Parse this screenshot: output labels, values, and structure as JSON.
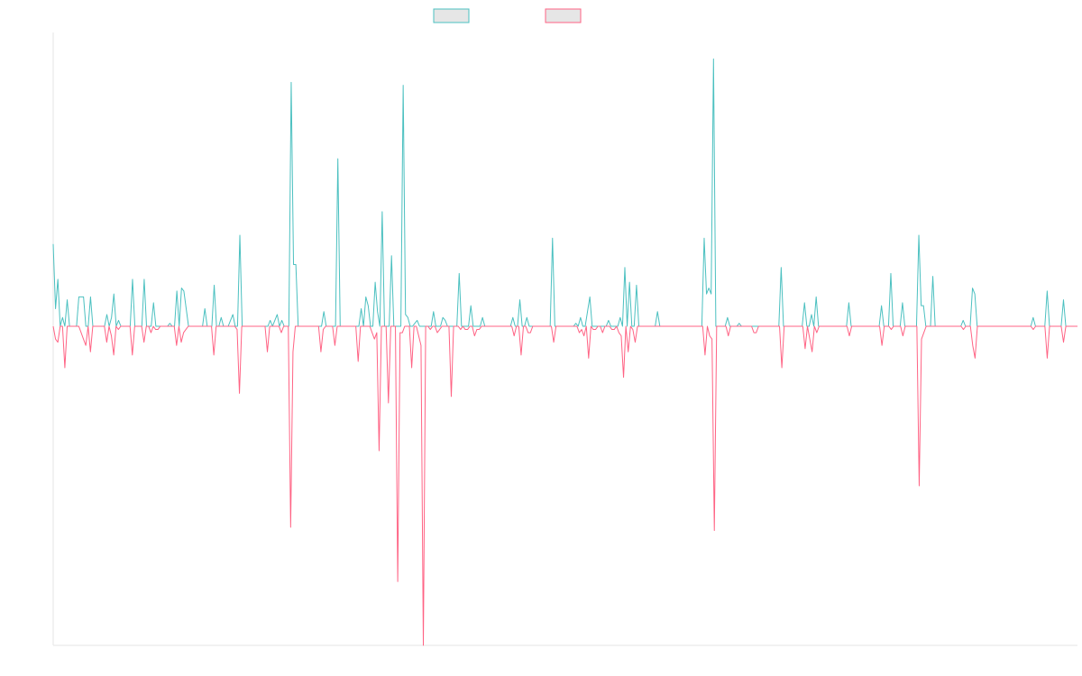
{
  "chart_data": {
    "type": "line",
    "title": "",
    "xlabel": "",
    "ylabel": "",
    "ylim": [
      -1.0,
      1.0
    ],
    "grid": false,
    "legend": "top-center",
    "zero_line": true,
    "series": [
      {
        "color": "#4bc0c0",
        "values": [
          0.28,
          0.06,
          0.16,
          0.0,
          0.03,
          0.0,
          0.09,
          0.0,
          0.0,
          0.0,
          0.0,
          0.1,
          0.1,
          0.1,
          0.0,
          0.0,
          0.1,
          0.0,
          0.0,
          0.0,
          0.0,
          0.0,
          0.0,
          0.04,
          0.0,
          0.03,
          0.11,
          0.0,
          0.02,
          0.0,
          0.0,
          0.0,
          0.0,
          0.0,
          0.16,
          0.0,
          0.0,
          0.0,
          0.0,
          0.16,
          0.0,
          0.0,
          0.0,
          0.08,
          0.0,
          0.0,
          0.0,
          0.0,
          0.0,
          0.0,
          0.01,
          0.0,
          0.0,
          0.12,
          0.0,
          0.13,
          0.12,
          0.06,
          0.0,
          0.0,
          0.0,
          0.0,
          0.0,
          0.0,
          0.0,
          0.06,
          0.0,
          0.0,
          0.0,
          0.14,
          0.0,
          0.0,
          0.03,
          0.0,
          0.0,
          0.0,
          0.02,
          0.04,
          0.0,
          0.0,
          0.31,
          0.0,
          0.0,
          0.0,
          0.0,
          0.0,
          0.0,
          0.0,
          0.0,
          0.0,
          0.0,
          0.0,
          0.0,
          0.02,
          0.0,
          0.02,
          0.04,
          0.0,
          0.02,
          0.0,
          0.0,
          0.0,
          0.83,
          0.21,
          0.21,
          0.0,
          0.0,
          0.0,
          0.0,
          0.0,
          0.0,
          0.0,
          0.0,
          0.0,
          0.0,
          0.0,
          0.05,
          0.0,
          0.0,
          0.0,
          0.0,
          0.0,
          0.57,
          0.0,
          0.0,
          0.0,
          0.0,
          0.0,
          0.0,
          0.0,
          0.0,
          0.0,
          0.06,
          0.0,
          0.1,
          0.07,
          0.0,
          0.0,
          0.15,
          0.05,
          0.0,
          0.39,
          0.0,
          0.0,
          0.0,
          0.24,
          0.0,
          0.0,
          0.0,
          0.0,
          0.82,
          0.04,
          0.03,
          0.0,
          0.0,
          0.01,
          0.02,
          0.0,
          0.0,
          0.0,
          0.0,
          0.0,
          0.0,
          0.05,
          0.0,
          0.0,
          0.0,
          0.03,
          0.02,
          0.0,
          0.0,
          0.0,
          0.0,
          0.0,
          0.18,
          0.0,
          0.0,
          0.0,
          0.0,
          0.07,
          0.0,
          0.0,
          0.0,
          0.0,
          0.03,
          0.0,
          0.0,
          0.0,
          0.0,
          0.0,
          0.0,
          0.0,
          0.0,
          0.0,
          0.0,
          0.0,
          0.0,
          0.03,
          0.0,
          0.0,
          0.09,
          0.0,
          0.0,
          0.03,
          0.0,
          0.0,
          0.0,
          0.0,
          0.0,
          0.0,
          0.0,
          0.0,
          0.0,
          0.0,
          0.3,
          0.0,
          0.0,
          0.0,
          0.0,
          0.0,
          0.0,
          0.0,
          0.0,
          0.0,
          0.01,
          0.0,
          0.03,
          0.0,
          0.0,
          0.05,
          0.1,
          0.0,
          0.0,
          0.0,
          0.0,
          0.0,
          0.0,
          0.0,
          0.02,
          0.0,
          0.0,
          0.0,
          0.0,
          0.03,
          0.0,
          0.2,
          0.0,
          0.15,
          0.0,
          0.0,
          0.14,
          0.0,
          0.0,
          0.0,
          0.0,
          0.0,
          0.0,
          0.0,
          0.0,
          0.05,
          0.0,
          0.0,
          0.0,
          0.0,
          0.0,
          0.0,
          0.0,
          0.0,
          0.0,
          0.0,
          0.0,
          0.0,
          0.0,
          0.0,
          0.0,
          0.0,
          0.0,
          0.0,
          0.0,
          0.3,
          0.11,
          0.13,
          0.11,
          0.91,
          0.0,
          0.0,
          0.0,
          0.0,
          0.0,
          0.03,
          0.0,
          0.0,
          0.0,
          0.0,
          0.01,
          0.0,
          0.0,
          0.0,
          0.0,
          0.0,
          0.0,
          0.0,
          0.0,
          0.0,
          0.0,
          0.0,
          0.0,
          0.0,
          0.0,
          0.0,
          0.0,
          0.0,
          0.2,
          0.0,
          0.0,
          0.0,
          0.0,
          0.0,
          0.0,
          0.0,
          0.0,
          0.0,
          0.08,
          0.0,
          0.0,
          0.04,
          0.0,
          0.1,
          0.0,
          0.0,
          0.0,
          0.0,
          0.0,
          0.0,
          0.0,
          0.0,
          0.0,
          0.0,
          0.0,
          0.0,
          0.0,
          0.08,
          0.0,
          0.0,
          0.0,
          0.0,
          0.0,
          0.0,
          0.0,
          0.0,
          0.0,
          0.0,
          0.0,
          0.0,
          0.0,
          0.07,
          0.0,
          0.0,
          0.0,
          0.18,
          0.0,
          0.0,
          0.0,
          0.0,
          0.08,
          0.0,
          0.0,
          0.0,
          0.0,
          0.0,
          0.0,
          0.31,
          0.07,
          0.07,
          0.0,
          0.0,
          0.0,
          0.17,
          0.0,
          0.0,
          0.0,
          0.0,
          0.0,
          0.0,
          0.0,
          0.0,
          0.0,
          0.0,
          0.0,
          0.0,
          0.02,
          0.0,
          0.0,
          0.0,
          0.13,
          0.11,
          0.0,
          0.0,
          0.0,
          0.0,
          0.0,
          0.0,
          0.0,
          0.0,
          0.0,
          0.0,
          0.0,
          0.0,
          0.0,
          0.0,
          0.0,
          0.0,
          0.0,
          0.0,
          0.0,
          0.0,
          0.0,
          0.0,
          0.0,
          0.0,
          0.03,
          0.0,
          0.0,
          0.0,
          0.0,
          0.0,
          0.12,
          0.0,
          0.0,
          0.0,
          0.0,
          0.0,
          0.0,
          0.09,
          0.0,
          0.0,
          0.0,
          0.0,
          0.0,
          0.0
        ]
      },
      {
        "color": "#ff6384",
        "values": [
          0.0,
          -0.04,
          -0.05,
          0.0,
          0.0,
          -0.13,
          0.0,
          0.0,
          0.0,
          0.0,
          0.0,
          0.0,
          -0.02,
          -0.04,
          -0.06,
          0.0,
          -0.08,
          0.0,
          0.0,
          0.0,
          0.0,
          0.0,
          0.0,
          -0.05,
          0.0,
          -0.03,
          -0.09,
          0.0,
          -0.01,
          0.0,
          0.0,
          0.0,
          0.0,
          0.0,
          -0.09,
          0.0,
          0.0,
          0.0,
          0.0,
          -0.05,
          0.0,
          0.0,
          -0.02,
          0.0,
          -0.01,
          -0.01,
          0.0,
          0.0,
          0.0,
          0.0,
          0.0,
          0.0,
          0.0,
          -0.06,
          0.0,
          -0.05,
          -0.02,
          -0.01,
          0.0,
          0.0,
          0.0,
          0.0,
          0.0,
          0.0,
          0.0,
          0.0,
          0.0,
          0.0,
          0.0,
          -0.09,
          0.0,
          0.0,
          0.0,
          0.0,
          0.0,
          0.0,
          0.0,
          0.0,
          0.0,
          -0.01,
          -0.21,
          0.0,
          0.0,
          0.0,
          0.0,
          0.0,
          0.0,
          0.0,
          0.0,
          0.0,
          0.0,
          0.0,
          -0.08,
          0.0,
          0.0,
          0.0,
          0.0,
          0.0,
          -0.02,
          0.0,
          0.0,
          0.0,
          -0.63,
          -0.08,
          0.0,
          0.0,
          0.0,
          0.0,
          0.0,
          0.0,
          0.0,
          0.0,
          0.0,
          0.0,
          0.0,
          -0.08,
          -0.01,
          0.0,
          0.0,
          0.0,
          0.0,
          -0.06,
          0.0,
          0.0,
          0.0,
          0.0,
          0.0,
          0.0,
          0.0,
          0.0,
          0.0,
          -0.11,
          0.0,
          0.0,
          0.0,
          0.0,
          0.0,
          -0.02,
          -0.04,
          -0.02,
          -0.39,
          0.0,
          0.0,
          0.0,
          -0.24,
          0.0,
          0.0,
          0.0,
          -0.8,
          -0.02,
          -0.02,
          0.0,
          0.0,
          0.0,
          -0.13,
          0.0,
          0.0,
          -0.03,
          -0.06,
          -1.0,
          0.0,
          0.0,
          -0.01,
          0.0,
          0.0,
          -0.02,
          -0.01,
          0.0,
          0.0,
          0.0,
          0.0,
          -0.22,
          0.0,
          0.0,
          0.0,
          -0.01,
          0.0,
          -0.01,
          -0.01,
          0.0,
          0.0,
          -0.03,
          -0.01,
          -0.01,
          0.0,
          0.0,
          0.0,
          0.0,
          0.0,
          0.0,
          0.0,
          0.0,
          0.0,
          0.0,
          0.0,
          0.0,
          0.0,
          0.0,
          -0.03,
          0.0,
          0.0,
          -0.09,
          0.0,
          0.0,
          -0.02,
          -0.02,
          0.0,
          0.0,
          0.0,
          0.0,
          0.0,
          0.0,
          0.0,
          0.0,
          0.0,
          -0.05,
          0.0,
          0.0,
          0.0,
          0.0,
          0.0,
          0.0,
          0.0,
          0.0,
          0.0,
          0.0,
          -0.02,
          -0.01,
          -0.03,
          0.0,
          -0.1,
          0.0,
          -0.01,
          -0.01,
          0.0,
          0.0,
          -0.02,
          0.0,
          0.0,
          0.0,
          -0.01,
          -0.01,
          0.0,
          -0.02,
          -0.03,
          -0.16,
          0.0,
          -0.08,
          0.0,
          -0.01,
          -0.05,
          0.0,
          0.0,
          0.0,
          0.0,
          0.0,
          0.0,
          0.0,
          0.0,
          0.0,
          0.0,
          0.0,
          0.0,
          0.0,
          0.0,
          0.0,
          0.0,
          0.0,
          0.0,
          0.0,
          0.0,
          0.0,
          0.0,
          0.0,
          0.0,
          0.0,
          0.0,
          0.0,
          0.0,
          0.0,
          -0.09,
          0.0,
          -0.03,
          -0.04,
          -0.64,
          0.0,
          0.0,
          0.0,
          0.0,
          0.0,
          -0.03,
          0.0,
          0.0,
          0.0,
          0.0,
          0.0,
          0.0,
          0.0,
          0.0,
          0.0,
          0.0,
          -0.02,
          -0.02,
          0.0,
          0.0,
          0.0,
          0.0,
          0.0,
          0.0,
          0.0,
          0.0,
          0.0,
          0.0,
          -0.13,
          0.0,
          0.0,
          0.0,
          0.0,
          0.0,
          0.0,
          0.0,
          0.0,
          0.0,
          -0.07,
          0.0,
          -0.04,
          -0.08,
          0.0,
          -0.02,
          0.0,
          0.0,
          0.0,
          0.0,
          0.0,
          0.0,
          0.0,
          0.0,
          0.0,
          0.0,
          0.0,
          0.0,
          0.0,
          -0.03,
          0.0,
          0.0,
          0.0,
          0.0,
          0.0,
          0.0,
          0.0,
          0.0,
          0.0,
          0.0,
          0.0,
          0.0,
          0.0,
          -0.06,
          0.0,
          0.0,
          0.0,
          -0.01,
          0.0,
          0.0,
          0.0,
          0.0,
          -0.03,
          0.0,
          0.0,
          0.0,
          0.0,
          0.0,
          0.0,
          -0.5,
          -0.04,
          -0.02,
          0.0,
          0.0,
          0.0,
          0.0,
          0.0,
          0.0,
          0.0,
          0.0,
          0.0,
          0.0,
          0.0,
          0.0,
          0.0,
          0.0,
          0.0,
          0.0,
          -0.01,
          0.0,
          0.0,
          0.0,
          -0.06,
          -0.1,
          0.0,
          0.0,
          0.0,
          0.0,
          0.0,
          0.0,
          0.0,
          0.0,
          0.0,
          0.0,
          0.0,
          0.0,
          0.0,
          0.0,
          0.0,
          0.0,
          0.0,
          0.0,
          0.0,
          0.0,
          0.0,
          0.0,
          0.0,
          0.0,
          -0.01,
          0.0,
          0.0,
          0.0,
          0.0,
          0.0,
          -0.1,
          0.0,
          0.0,
          0.0,
          0.0,
          0.0,
          0.0,
          -0.05,
          0.0,
          0.0,
          0.0,
          0.0,
          0.0,
          0.0
        ]
      }
    ]
  }
}
